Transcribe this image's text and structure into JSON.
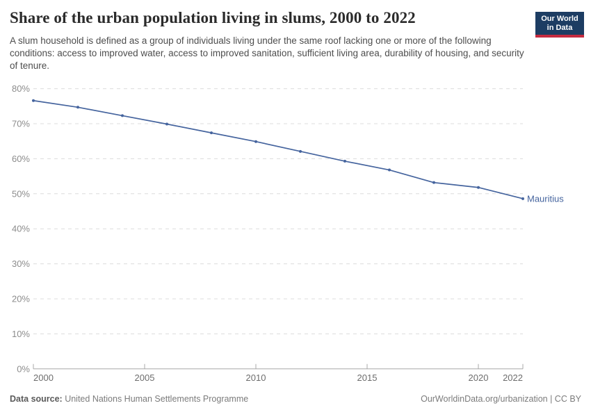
{
  "header": {
    "title": "Share of the urban population living in slums, 2000 to 2022",
    "subtitle": "A slum household is defined as a group of individuals living under the same roof lacking one or more of the following conditions: access to improved water, access to improved sanitation, sufficient living area, durability of housing, and security of tenure.",
    "logo": {
      "line1": "Our World",
      "line2": "in Data"
    }
  },
  "chart_data": {
    "type": "line",
    "title": "Share of the urban population living in slums, 2000 to 2022",
    "x": [
      2000,
      2002,
      2004,
      2006,
      2008,
      2010,
      2012,
      2014,
      2016,
      2018,
      2020,
      2022
    ],
    "series": [
      {
        "name": "Mauritius",
        "values": [
          76.6,
          74.7,
          72.3,
          69.9,
          67.4,
          64.9,
          62.1,
          59.3,
          56.8,
          53.2,
          51.8,
          48.6
        ],
        "color": "#45649e"
      }
    ],
    "xlabel": "",
    "ylabel": "",
    "xlim": [
      2000,
      2022
    ],
    "ylim": [
      0,
      80
    ],
    "yticks": [
      0,
      10,
      20,
      30,
      40,
      50,
      60,
      70,
      80
    ],
    "ytick_format": "{}%",
    "xticks": [
      2000,
      2005,
      2010,
      2015,
      2020,
      2022
    ],
    "grid": "horizontal dashed gridlines",
    "legend_position": "label at end of line"
  },
  "footer": {
    "source_label": "Data source:",
    "source": " United Nations Human Settlements Programme",
    "credit": "OurWorldinData.org/urbanization | CC BY"
  },
  "colors": {
    "line": "#45649e",
    "gridline": "#dcdcdc",
    "axis": "#a8a8a8",
    "logo_navy": "#1d3d63",
    "logo_red": "#c52b40"
  }
}
